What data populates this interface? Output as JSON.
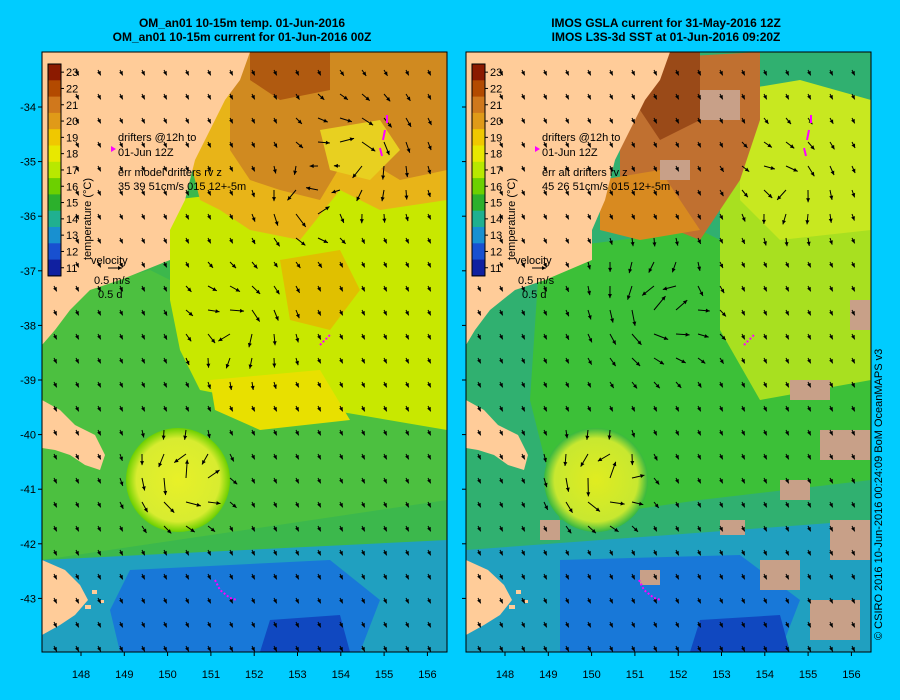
{
  "panels": [
    {
      "title_line1": "OM_an01 10-15m temp. 01-Jun-2016",
      "title_line2": "OM_an01 10-15m current for 01-Jun-2016 00Z",
      "drifter_text1": "drifters @12h to",
      "drifter_text2": "01-Jun 12Z",
      "err_text1": "err model drifters rv z",
      "err_text2": "35 39 51cm/s 015 12+-5m"
    },
    {
      "title_line1": "IMOS GSLA current for 31-May-2016 12Z",
      "title_line2": "IMOS L3S-3d SST at 01-Jun-2016 09:20Z",
      "drifter_text1": "drifters @12h to",
      "drifter_text2": "01-Jun 12Z",
      "err_text1": "err alt drifters rv z",
      "err_text2": "45 26 51cm/s 015 12+-5m"
    }
  ],
  "colorbar": {
    "label": "temperature (°C)",
    "ticks": [
      "23",
      "22",
      "21",
      "20",
      "19",
      "18",
      "17",
      "16",
      "15",
      "14",
      "13",
      "12",
      "11"
    ],
    "colors": [
      "#8b1a00",
      "#b34a00",
      "#d0781c",
      "#e09a18",
      "#f0c800",
      "#e8e800",
      "#b8e800",
      "#6cd000",
      "#2cb02c",
      "#20b090",
      "#1890d0",
      "#1850d0",
      "#1020a0"
    ]
  },
  "velocity": {
    "label": "velocity",
    "speed": "0.5 m/s",
    "duration": "0.5 d"
  },
  "lon_ticks": [
    "148",
    "149",
    "150",
    "151",
    "152",
    "153",
    "154",
    "155",
    "156"
  ],
  "lat_ticks": [
    "-34",
    "-35",
    "-36",
    "-37",
    "-38",
    "-39",
    "-40",
    "-41",
    "-42",
    "-43"
  ],
  "credit": "© CSIRO 2016   10-Jun-2016 00:24:09 BoM OceanMAPS v3",
  "colors": {
    "background": "#00ccff",
    "land": "#ffcc99",
    "drifter": "#ff00ff",
    "cloud": "#c8a088"
  }
}
